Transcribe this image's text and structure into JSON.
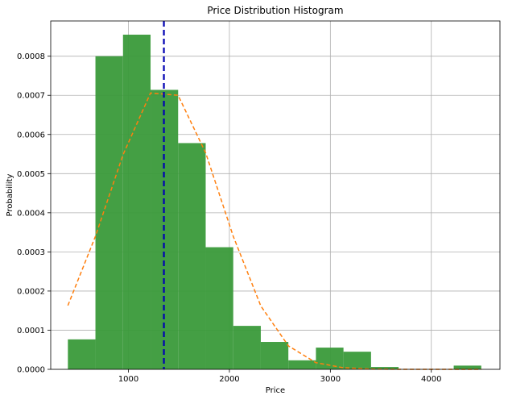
{
  "chart_data": {
    "type": "bar",
    "title": "Price Distribution Histogram",
    "xlabel": "Price",
    "ylabel": "Probability",
    "xlim": [
      230,
      4680
    ],
    "ylim": [
      0,
      0.00089
    ],
    "grid": true,
    "x_ticks": [
      {
        "value": 1000,
        "label": "1000"
      },
      {
        "value": 2000,
        "label": "2000"
      },
      {
        "value": 3000,
        "label": "3000"
      },
      {
        "value": 4000,
        "label": "4000"
      }
    ],
    "y_ticks": [
      {
        "value": 0,
        "label": "0.0000"
      },
      {
        "value": 0.0001,
        "label": "0.0001"
      },
      {
        "value": 0.0002,
        "label": "0.0002"
      },
      {
        "value": 0.0003,
        "label": "0.0003"
      },
      {
        "value": 0.0004,
        "label": "0.0004"
      },
      {
        "value": 0.0005,
        "label": "0.0005"
      },
      {
        "value": 0.0006,
        "label": "0.0006"
      },
      {
        "value": 0.0007,
        "label": "0.0007"
      },
      {
        "value": 0.0008,
        "label": "0.0008"
      }
    ],
    "bins": [
      {
        "x0": 400,
        "x1": 673,
        "value": 7.65e-05
      },
      {
        "x0": 673,
        "x1": 946,
        "value": 0.0008
      },
      {
        "x0": 946,
        "x1": 1219,
        "value": 0.000855
      },
      {
        "x0": 1219,
        "x1": 1492,
        "value": 0.000714
      },
      {
        "x0": 1492,
        "x1": 1765,
        "value": 0.000578
      },
      {
        "x0": 1765,
        "x1": 2038,
        "value": 0.000312
      },
      {
        "x0": 2038,
        "x1": 2311,
        "value": 0.000111
      },
      {
        "x0": 2311,
        "x1": 2584,
        "value": 7e-05
      },
      {
        "x0": 2584,
        "x1": 2857,
        "value": 2.3e-05
      },
      {
        "x0": 2857,
        "x1": 3130,
        "value": 5.55e-05
      },
      {
        "x0": 3130,
        "x1": 3403,
        "value": 4.5e-05
      },
      {
        "x0": 3403,
        "x1": 3676,
        "value": 6e-06
      },
      {
        "x0": 3676,
        "x1": 3949,
        "value": 0.0
      },
      {
        "x0": 3949,
        "x1": 4222,
        "value": 0.0
      },
      {
        "x0": 4222,
        "x1": 4495,
        "value": 9.5e-06
      }
    ],
    "curve": {
      "x": [
        400,
        673,
        946,
        1219,
        1492,
        1765,
        2038,
        2311,
        2584,
        2857,
        3130,
        3403,
        3676,
        3949,
        4222,
        4495
      ],
      "y": [
        0.000163,
        0.00034,
        0.000548,
        0.000706,
        0.0007,
        0.000553,
        0.00034,
        0.000162,
        6e-05,
        1.7e-05,
        4e-06,
        7e-07,
        1e-07,
        0.0,
        0.0,
        0.0
      ]
    },
    "mean_line": {
      "x": 1351
    },
    "colors": {
      "bars": "#3a9a3a",
      "curve": "#ff7f0e",
      "mean_line": "#0000b3",
      "grid": "#b0b0b0"
    }
  }
}
